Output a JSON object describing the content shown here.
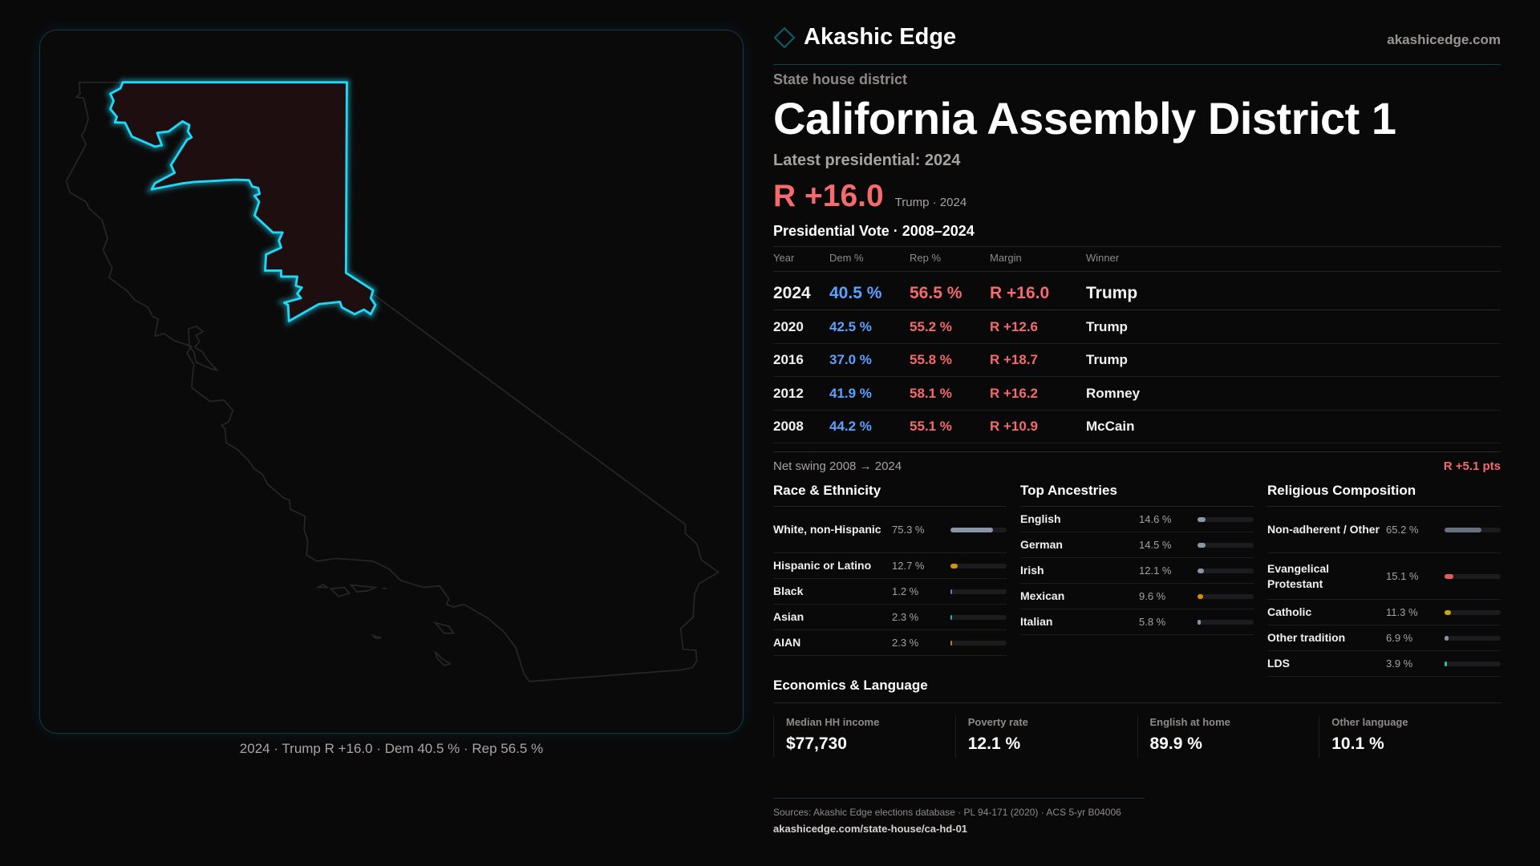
{
  "brand": {
    "name": "Akashic Edge",
    "site": "akashicedge.com",
    "logo_icon": "diamond-icon"
  },
  "header": {
    "kicker": "State house district",
    "title": "California Assembly District 1",
    "latest": "Latest presidential: 2024",
    "margin": "R +16.0",
    "margin_sub": "Trump · 2024"
  },
  "map": {
    "caption": "2024 · Trump R +16.0 · Dem 40.5 % · Rep 56.5 %",
    "highlight_color": "#1fd8f5",
    "district_fill": "#1e0e0f"
  },
  "vote": {
    "title": "Presidential Vote · 2008–2024",
    "columns": [
      "Year",
      "Dem %",
      "Rep %",
      "Margin",
      "Winner"
    ],
    "rows": [
      {
        "year": "2024",
        "dem": "40.5 %",
        "rep": "56.5 %",
        "margin": "R +16.0",
        "winner": "Trump"
      },
      {
        "year": "2020",
        "dem": "42.5 %",
        "rep": "55.2 %",
        "margin": "R +12.6",
        "winner": "Trump"
      },
      {
        "year": "2016",
        "dem": "37.0 %",
        "rep": "55.8 %",
        "margin": "R +18.7",
        "winner": "Trump"
      },
      {
        "year": "2012",
        "dem": "41.9 %",
        "rep": "58.1 %",
        "margin": "R +16.2",
        "winner": "Romney"
      },
      {
        "year": "2008",
        "dem": "44.2 %",
        "rep": "55.1 %",
        "margin": "R +10.9",
        "winner": "McCain"
      }
    ],
    "swing_label": "Net swing 2008 → 2024",
    "swing_value": "R +5.1 pts"
  },
  "race": {
    "title": "Race & Ethnicity",
    "rows": [
      {
        "label": "White, non-Hispanic",
        "value": "75.3 %",
        "pct": 75.3,
        "color": "#8a95a8"
      },
      {
        "label": "Hispanic or Latino",
        "value": "12.7 %",
        "pct": 12.7,
        "color": "#d4900a"
      },
      {
        "label": "Black",
        "value": "1.2 %",
        "pct": 1.2,
        "color": "#7a6acc"
      },
      {
        "label": "Asian",
        "value": "2.3 %",
        "pct": 2.3,
        "color": "#2ab0a0"
      },
      {
        "label": "AIAN",
        "value": "2.3 %",
        "pct": 2.3,
        "color": "#c07a30"
      }
    ]
  },
  "ancestry": {
    "title": "Top Ancestries",
    "rows": [
      {
        "label": "English",
        "value": "14.6 %",
        "pct": 14.6,
        "color": "#8a95a8"
      },
      {
        "label": "German",
        "value": "14.5 %",
        "pct": 14.5,
        "color": "#8a95a8"
      },
      {
        "label": "Irish",
        "value": "12.1 %",
        "pct": 12.1,
        "color": "#8a95a8"
      },
      {
        "label": "Mexican",
        "value": "9.6 %",
        "pct": 9.6,
        "color": "#d4900a"
      },
      {
        "label": "Italian",
        "value": "5.8 %",
        "pct": 5.8,
        "color": "#8a95a8"
      }
    ]
  },
  "religion": {
    "title": "Religious Composition",
    "rows": [
      {
        "label": "Non-adherent / Other",
        "value": "65.2 %",
        "pct": 65.2,
        "color": "#6b7080"
      },
      {
        "label": "Evangelical Protestant",
        "value": "15.1 %",
        "pct": 15.1,
        "color": "#e05c5c"
      },
      {
        "label": "Catholic",
        "value": "11.3 %",
        "pct": 11.3,
        "color": "#d4a20a"
      },
      {
        "label": "Other tradition",
        "value": "6.9 %",
        "pct": 6.9,
        "color": "#8a95a8"
      },
      {
        "label": "LDS",
        "value": "3.9 %",
        "pct": 3.9,
        "color": "#2ac0b0"
      }
    ]
  },
  "economics": {
    "title": "Economics & Language",
    "cards": [
      {
        "label": "Median HH income",
        "value": "$77,730"
      },
      {
        "label": "Poverty rate",
        "value": "12.1 %"
      },
      {
        "label": "English at home",
        "value": "89.9 %"
      },
      {
        "label": "Other language",
        "value": "10.1 %"
      }
    ]
  },
  "footer": {
    "sources": "Sources: Akashic Edge elections database · PL 94-171 (2020) · ACS 5-yr B04006",
    "url": "akashicedge.com/state-house/ca-hd-01"
  }
}
